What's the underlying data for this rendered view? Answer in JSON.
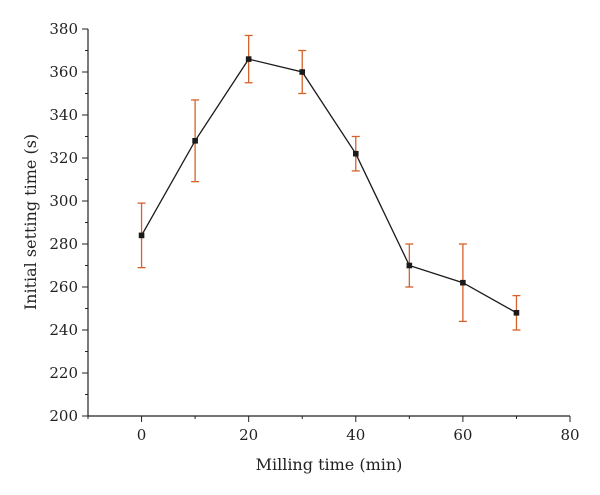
{
  "chart_data": {
    "type": "line",
    "title": "",
    "xlabel": "Milling time (min)",
    "ylabel": "Initial setting time (s)",
    "xlim": [
      -10,
      80
    ],
    "ylim": [
      200,
      380
    ],
    "x_ticks": [
      0,
      20,
      40,
      60,
      80
    ],
    "y_ticks": [
      200,
      220,
      240,
      260,
      280,
      300,
      320,
      340,
      360,
      380
    ],
    "grid": false,
    "legend": "none",
    "series": [
      {
        "x": [
          0,
          10,
          20,
          30,
          40,
          50,
          60,
          70
        ],
        "y": [
          284,
          328,
          366,
          360,
          322,
          270,
          262,
          248
        ],
        "error_low": [
          269,
          309,
          355,
          350,
          314,
          260,
          244,
          240
        ],
        "error_high": [
          299,
          347,
          377,
          370,
          330,
          280,
          280,
          256
        ],
        "line_color": "#1a1a1a",
        "marker_color": "#1a1a1a",
        "error_color": "#d4622a"
      }
    ]
  }
}
